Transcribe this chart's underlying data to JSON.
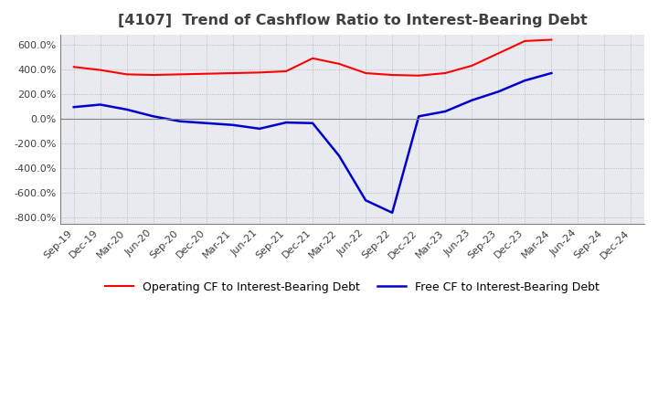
{
  "title": "[4107]  Trend of Cashflow Ratio to Interest-Bearing Debt",
  "title_color": "#404040",
  "background_color": "#ffffff",
  "plot_bg_color": "#e8eaf0",
  "grid_color": "#aaaaaa",
  "ylim": [
    -850,
    680
  ],
  "yticks": [
    -800,
    -600,
    -400,
    -200,
    0,
    200,
    400,
    600
  ],
  "x_labels": [
    "Sep-19",
    "Dec-19",
    "Mar-20",
    "Jun-20",
    "Sep-20",
    "Dec-20",
    "Mar-21",
    "Jun-21",
    "Sep-21",
    "Dec-21",
    "Mar-22",
    "Jun-22",
    "Sep-22",
    "Dec-22",
    "Mar-23",
    "Jun-23",
    "Sep-23",
    "Dec-23",
    "Mar-24",
    "Jun-24",
    "Sep-24",
    "Dec-24"
  ],
  "operating_cf": [
    420,
    395,
    360,
    355,
    360,
    365,
    370,
    375,
    385,
    490,
    445,
    370,
    355,
    350,
    370,
    430,
    530,
    630,
    640,
    null,
    null,
    null
  ],
  "free_cf": [
    95,
    115,
    75,
    20,
    -20,
    -35,
    -50,
    -80,
    -30,
    -35,
    -300,
    -660,
    -760,
    20,
    60,
    150,
    220,
    310,
    370,
    null,
    null,
    null
  ],
  "operating_color": "#ff0000",
  "free_color": "#0000cd",
  "legend_labels": [
    "Operating CF to Interest-Bearing Debt",
    "Free CF to Interest-Bearing Debt"
  ]
}
